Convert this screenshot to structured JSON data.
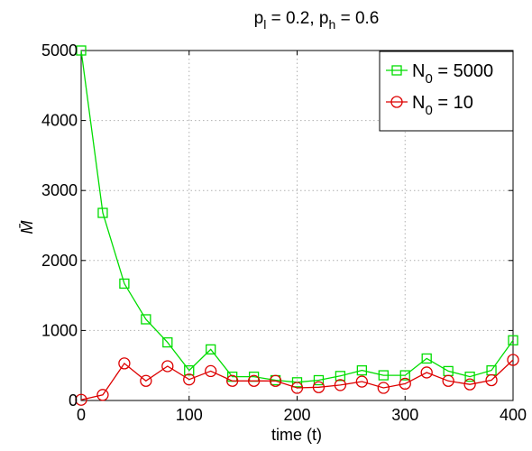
{
  "chart_data": {
    "type": "line",
    "title": "p_l = 0.2, p_h = 0.6",
    "title_parts": {
      "prefix1": "p",
      "sub1": "l",
      "mid": " = 0.2, p",
      "sub2": "h",
      "suffix": " = 0.6"
    },
    "xlabel": "time (t)",
    "ylabel": "M̄",
    "xlim": [
      0,
      400
    ],
    "ylim": [
      0,
      5000
    ],
    "x_ticks": [
      0,
      100,
      200,
      300,
      400
    ],
    "y_ticks": [
      0,
      1000,
      2000,
      3000,
      4000,
      5000
    ],
    "grid": true,
    "legend_position": "top-right",
    "x": [
      0,
      20,
      40,
      60,
      80,
      100,
      120,
      140,
      160,
      180,
      200,
      220,
      240,
      260,
      280,
      300,
      320,
      340,
      360,
      380,
      400
    ],
    "series": [
      {
        "name": "N_0 = 5000",
        "legend_parts": {
          "base": "N",
          "sub": "0",
          "rest": " = 5000"
        },
        "color": "#00dd00",
        "marker": "square",
        "values": [
          5000,
          2680,
          1670,
          1160,
          830,
          430,
          730,
          340,
          340,
          290,
          260,
          290,
          350,
          430,
          360,
          360,
          600,
          420,
          340,
          430,
          860
        ]
      },
      {
        "name": "N_0 = 10",
        "legend_parts": {
          "base": "N",
          "sub": "0",
          "rest": " = 10"
        },
        "color": "#dd0000",
        "marker": "circle",
        "values": [
          10,
          80,
          530,
          280,
          490,
          300,
          420,
          280,
          280,
          280,
          180,
          190,
          220,
          270,
          180,
          240,
          400,
          280,
          230,
          290,
          580
        ]
      }
    ]
  }
}
